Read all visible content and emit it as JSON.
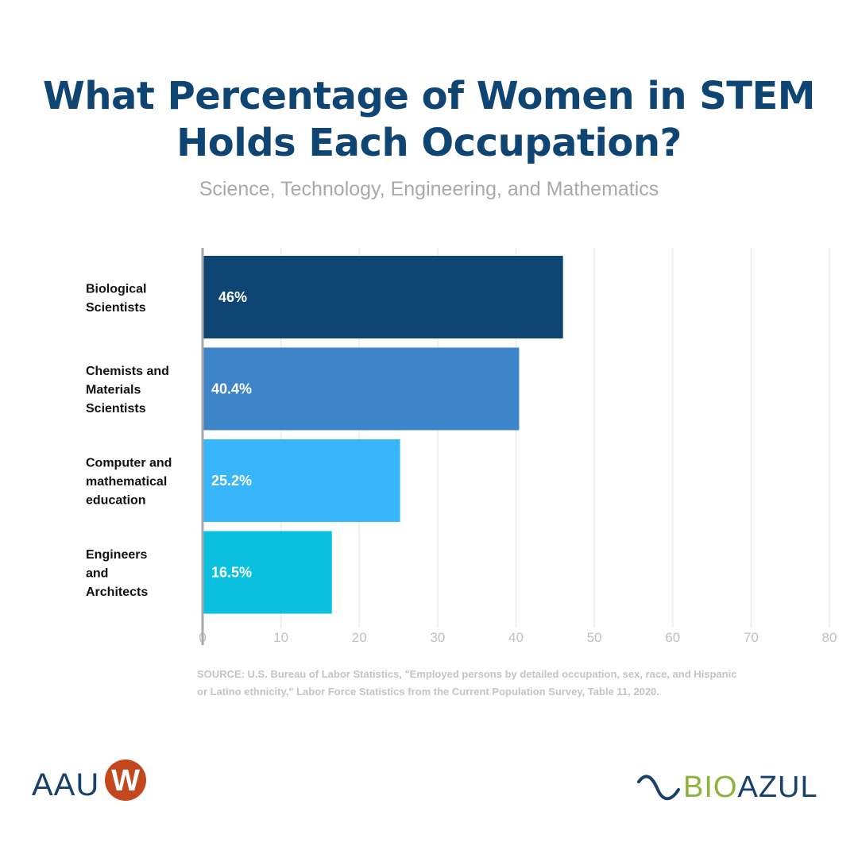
{
  "title_lines": [
    "What Percentage of Women in STEM",
    "Holds Each Occupation?"
  ],
  "subtitle": "Science, Technology, Engineering, and Mathematics",
  "chart_data": {
    "type": "bar",
    "orientation": "horizontal",
    "title": "What Percentage of Women in STEM Holds Each Occupation?",
    "subtitle": "Science, Technology, Engineering, and Mathematics",
    "xlabel": "",
    "ylabel": "",
    "xlim": [
      0,
      80
    ],
    "x_ticks": [
      0,
      10,
      20,
      30,
      40,
      50,
      60,
      70,
      80
    ],
    "grid": "vertical",
    "legend": "none",
    "categories": [
      [
        "Biological",
        "Scientists"
      ],
      [
        "Chemists and",
        "Materials",
        "Scientists"
      ],
      [
        "Computer and",
        "mathematical",
        "education"
      ],
      [
        "Engineers",
        "and",
        "Architects"
      ]
    ],
    "values": [
      46,
      40.4,
      25.2,
      16.5
    ],
    "data_labels": [
      "46%",
      "40.4%",
      "25.2%",
      "16.5%"
    ],
    "bar_colors": [
      "#0f4573",
      "#3e84c9",
      "#38b6fc",
      "#0bc0df"
    ]
  },
  "source": "SOURCE: U.S. Bureau of Labor Statistics, \"Employed persons by detailed occupation, sex, race, and Hispanic or Latino ethnicity,\" Labor Force Statistics from the Current Population Survey, Table 11, 2020.",
  "logos": {
    "left": {
      "text": "AAU",
      "mark": "W"
    },
    "right": {
      "text_a": "BIO",
      "text_b": "AZUL"
    }
  }
}
